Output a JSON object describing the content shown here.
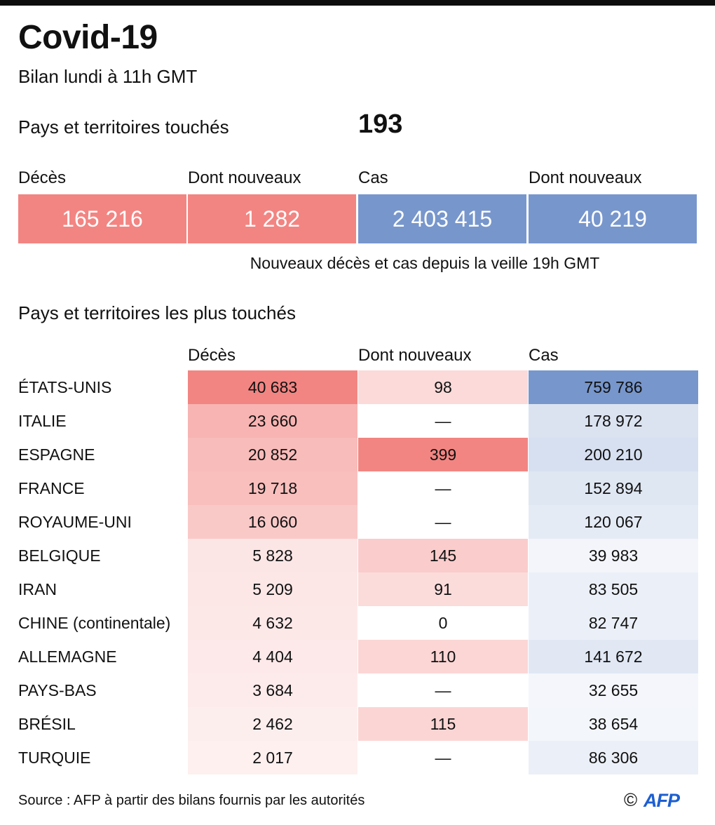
{
  "title": "Covid-19",
  "subtitle": "Bilan lundi à 11h GMT",
  "countries_touched": {
    "label": "Pays et territoires touchés",
    "value": "193"
  },
  "summary": {
    "headers": [
      "Décès",
      "Dont nouveaux",
      "Cas",
      "Dont nouveaux"
    ],
    "values": [
      "165 216",
      "1 282",
      "2 403 415",
      "40 219"
    ],
    "note": "Nouveaux décès et cas depuis la veille 19h GMT"
  },
  "colors": {
    "deaths_accent": "#f28582",
    "cases_accent": "#7796cc"
  },
  "table_title": "Pays et territoires les plus touchés",
  "chart_data": {
    "type": "table",
    "columns": [
      "Décès",
      "Dont nouveaux",
      "Cas"
    ],
    "rows": [
      {
        "country": "ÉTATS-UNIS",
        "deaths": 40683,
        "new_deaths": 98,
        "cases": 759786,
        "deaths_text": "40 683",
        "new_text": "98",
        "cases_text": "759 786"
      },
      {
        "country": "ITALIE",
        "deaths": 23660,
        "new_deaths": null,
        "cases": 178972,
        "deaths_text": "23 660",
        "new_text": "—",
        "cases_text": "178 972"
      },
      {
        "country": "ESPAGNE",
        "deaths": 20852,
        "new_deaths": 399,
        "cases": 200210,
        "deaths_text": "20 852",
        "new_text": "399",
        "cases_text": "200 210"
      },
      {
        "country": "FRANCE",
        "deaths": 19718,
        "new_deaths": null,
        "cases": 152894,
        "deaths_text": "19 718",
        "new_text": "—",
        "cases_text": "152 894"
      },
      {
        "country": "ROYAUME-UNI",
        "deaths": 16060,
        "new_deaths": null,
        "cases": 120067,
        "deaths_text": "16 060",
        "new_text": "—",
        "cases_text": "120 067"
      },
      {
        "country": "BELGIQUE",
        "deaths": 5828,
        "new_deaths": 145,
        "cases": 39983,
        "deaths_text": "5 828",
        "new_text": "145",
        "cases_text": "39 983"
      },
      {
        "country": "IRAN",
        "deaths": 5209,
        "new_deaths": 91,
        "cases": 83505,
        "deaths_text": "5 209",
        "new_text": "91",
        "cases_text": "83 505"
      },
      {
        "country": "CHINE (continentale)",
        "deaths": 4632,
        "new_deaths": 0,
        "cases": 82747,
        "deaths_text": "4 632",
        "new_text": "0",
        "cases_text": "82 747"
      },
      {
        "country": "ALLEMAGNE",
        "deaths": 4404,
        "new_deaths": 110,
        "cases": 141672,
        "deaths_text": "4 404",
        "new_text": "110",
        "cases_text": "141 672"
      },
      {
        "country": "PAYS-BAS",
        "deaths": 3684,
        "new_deaths": null,
        "cases": 32655,
        "deaths_text": "3 684",
        "new_text": "—",
        "cases_text": "32 655"
      },
      {
        "country": "BRÉSIL",
        "deaths": 2462,
        "new_deaths": 115,
        "cases": 38654,
        "deaths_text": "2 462",
        "new_text": "115",
        "cases_text": "38 654"
      },
      {
        "country": "TURQUIE",
        "deaths": 2017,
        "new_deaths": null,
        "cases": 86306,
        "deaths_text": "2 017",
        "new_text": "—",
        "cases_text": "86 306"
      }
    ]
  },
  "source": "Source : AFP à partir des bilans fournis par les autorités",
  "copyright": "©",
  "logo": "AFP"
}
